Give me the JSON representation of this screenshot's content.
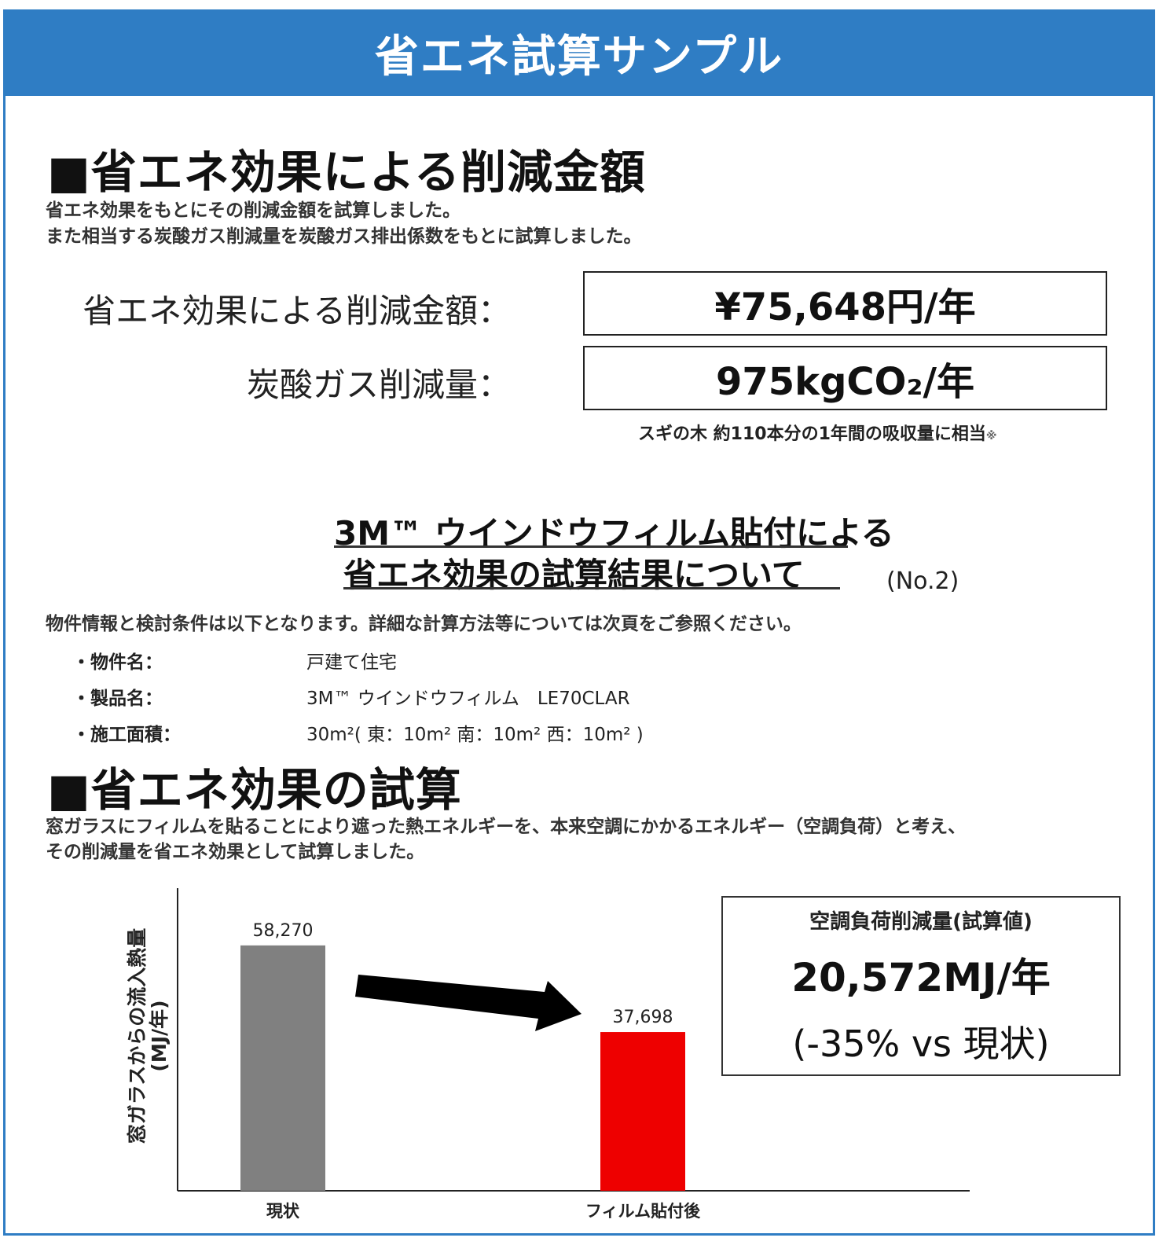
{
  "header": {
    "title": "省エネ試算サンプル"
  },
  "section1": {
    "heading": "■省エネ効果による削減金額",
    "desc_line1": "省エネ効果をもとにその削減金額を試算しました。",
    "desc_line2": "また相当する炭酸ガス削減量を炭酸ガス排出係数をもとに試算しました。",
    "rows": [
      {
        "label": "省エネ効果による削減金額：",
        "value": "¥75,648円/年"
      },
      {
        "label": "炭酸ガス削減量：",
        "value": "975kgCO₂/年"
      }
    ],
    "note": "スギの木 約110本分の1年間の吸収量に相当",
    "note_mark": "※"
  },
  "report": {
    "title_line1": "3M™ ウインドウフィルム貼付による",
    "title_line2": "省エネ効果の試算結果について",
    "number": "(No.2)",
    "intro": "物件情報と検討条件は以下となります。詳細な計算方法等については次頁をご参照ください。",
    "items": [
      {
        "label": "・物件名：",
        "value": "戸建て住宅"
      },
      {
        "label": "・製品名：",
        "value": "3M™ ウインドウフィルム　LE70CLAR"
      },
      {
        "label": "・施工面積：",
        "value": "30m²( 東：10m² 南：10m² 西：10m² )"
      }
    ]
  },
  "section2": {
    "heading": "■省エネ効果の試算",
    "desc_line1": "窓ガラスにフィルムを貼ることにより遮った熱エネルギーを、本来空調にかかるエネルギー（空調負荷）と考え、",
    "desc_line2": "その削減量を省エネ効果として試算しました。"
  },
  "chart_data": {
    "type": "bar",
    "categories": [
      "現状",
      "フィルム貼付後"
    ],
    "values": [
      58270,
      37698
    ],
    "value_labels": [
      "58,270",
      "37,698"
    ],
    "ylabel": "窓ガラスからの流入熱量",
    "ylabel_unit": "(MJ/年)",
    "ylim": [
      0,
      70000
    ],
    "colors": [
      "#808080",
      "#ee0000"
    ],
    "grid": false
  },
  "result": {
    "title": "空調負荷削減量(試算値)",
    "value": "20,572MJ/年",
    "change": "(-35% vs 現状)"
  }
}
